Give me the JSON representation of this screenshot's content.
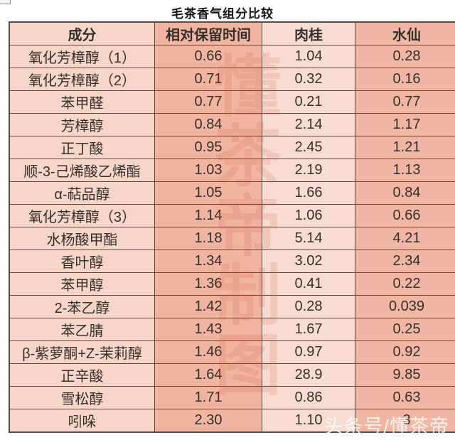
{
  "title": "毛茶香气组分比较",
  "watermark": {
    "vertical": "懂茶帝制图",
    "corner": "头条号/懂茶帝"
  },
  "colors": {
    "col-comp": "#f7d6c9",
    "col-rt": "#f1b4a0",
    "col-rougui": "#f8dcd3",
    "col-shuixian": "#f1b6a3",
    "border": "#524e48",
    "text": "#35302b",
    "watermark-red": "rgba(205,85,60,0.16)",
    "watermark-white": "rgba(255,255,255,0.85)"
  },
  "chart_data": {
    "type": "table",
    "title": "毛茶香气组分比较",
    "columns": [
      "成分",
      "相对保留时间",
      "肉桂",
      "水仙"
    ],
    "rows": [
      [
        "氧化芳樟醇（1）",
        "0.66",
        "1.04",
        "0.28"
      ],
      [
        "氧化芳樟醇（2）",
        "0.71",
        "0.32",
        "0.16"
      ],
      [
        "苯甲醛",
        "0.77",
        "0.21",
        "0.77"
      ],
      [
        "芳樟醇",
        "0.84",
        "2.14",
        "1.17"
      ],
      [
        "正丁酸",
        "0.95",
        "2.45",
        "1.21"
      ],
      [
        "顺-3-己烯酸乙烯酯",
        "1.03",
        "2.19",
        "1.13"
      ],
      [
        "α-萜品醇",
        "1.05",
        "1.66",
        "0.84"
      ],
      [
        "氧化芳樟醇（3）",
        "1.14",
        "1.06",
        "0.66"
      ],
      [
        "水杨酸甲酯",
        "1.18",
        "5.14",
        "4.21"
      ],
      [
        "香叶醇",
        "1.34",
        "3.02",
        "2.34"
      ],
      [
        "苯甲醇",
        "1.36",
        "0.41",
        "0.22"
      ],
      [
        "2-苯乙醇",
        "1.42",
        "0.28",
        "0.039"
      ],
      [
        "苯乙腈",
        "1.43",
        "1.67",
        "0.25"
      ],
      [
        "β-紫萝酮+Z-茉莉醇",
        "1.46",
        "0.97",
        "0.92"
      ],
      [
        "正辛酸",
        "1.64",
        "28.9",
        "9.85"
      ],
      [
        "雪松醇",
        "1.71",
        "0.86",
        "0.63"
      ],
      [
        "吲哚",
        "2.30",
        "1.10",
        "3"
      ]
    ]
  }
}
